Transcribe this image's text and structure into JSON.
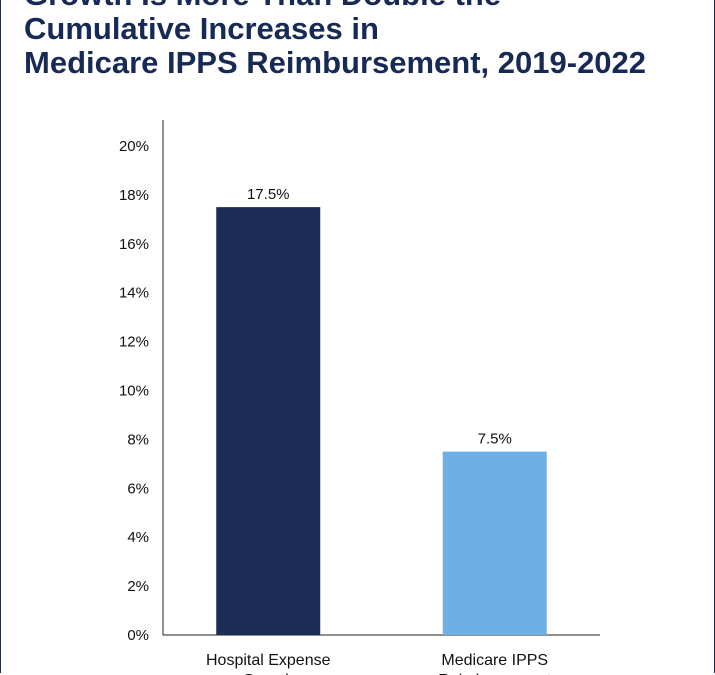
{
  "title_lines": [
    "Growth Is More Than Double the",
    "Cumulative Increases in",
    "Medicare IPPS Reimbursement, 2019-2022"
  ],
  "chart_data": {
    "type": "bar",
    "title": "Growth Is More Than Double the Cumulative Increases in Medicare IPPS Reimbursement, 2019-2022",
    "categories": [
      "Hospital Expense Growth",
      "Medicare IPPS Reimbursement"
    ],
    "category_lines": [
      [
        "Hospital Expense",
        "Growth"
      ],
      [
        "Medicare IPPS",
        "Reimbursement"
      ]
    ],
    "values": [
      17.5,
      7.5
    ],
    "data_labels": [
      "17.5%",
      "7.5%"
    ],
    "colors": [
      "#1b2d56",
      "#6eb0e3"
    ],
    "ylim": [
      0,
      20
    ],
    "yticks": [
      0,
      2,
      4,
      6,
      8,
      10,
      12,
      14,
      16,
      18,
      20
    ],
    "ytick_labels": [
      "0%",
      "2%",
      "4%",
      "6%",
      "8%",
      "10%",
      "12%",
      "14%",
      "16%",
      "18%",
      "20%"
    ],
    "grid": false,
    "xlabel": "",
    "ylabel": ""
  }
}
